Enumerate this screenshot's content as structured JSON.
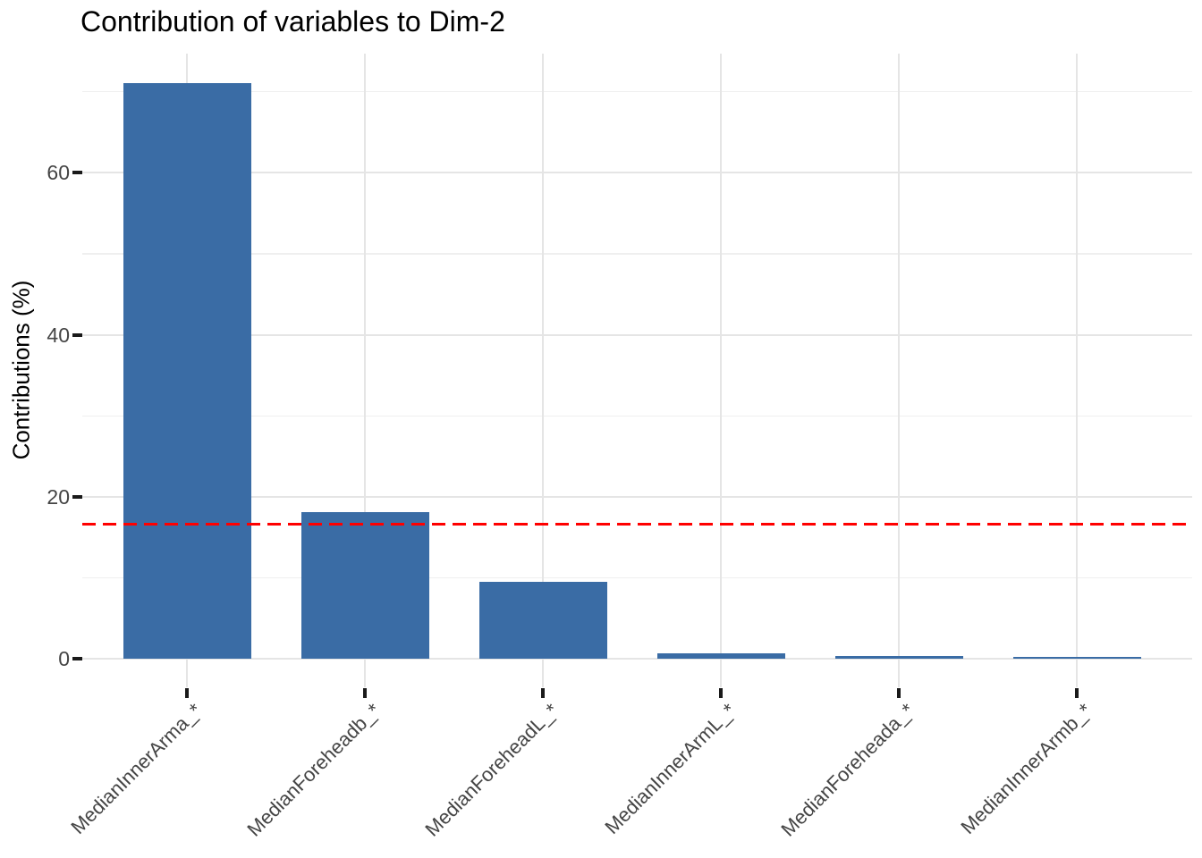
{
  "chart_data": {
    "type": "bar",
    "title": "Contribution of variables to Dim-2",
    "xlabel": "",
    "ylabel": "Contributions (%)",
    "categories": [
      "MedianInnerArma_*",
      "MedianForeheadb_*",
      "MedianForeheadL_*",
      "MedianInnerArmL_*",
      "MedianForeheada_*",
      "MedianInnerArmb_*"
    ],
    "values": [
      71.1,
      18.1,
      9.5,
      0.72,
      0.38,
      0.3
    ],
    "expected_average_line": {
      "value": 16.67,
      "linetype": "dashed",
      "color": "#FF0000"
    },
    "y_major_ticks": [
      0,
      20,
      40,
      60
    ],
    "y_minor_ticks": [
      10,
      30,
      50,
      70
    ],
    "ylim": [
      -3.5,
      74.7
    ],
    "grid": true,
    "legend": "none",
    "x_label_angle": 45,
    "bar_color": "#3A6CA5"
  },
  "colors": {
    "background": "#FFFFFF",
    "bar_fill": "#3A6CA5",
    "threshold_red": "#FF0000",
    "grid_major": "#E5E5E5",
    "grid_minor": "#EFEFEF",
    "axis_text": "#454545",
    "tick_mark": "#1A1A1A",
    "title_text": "#000000"
  }
}
